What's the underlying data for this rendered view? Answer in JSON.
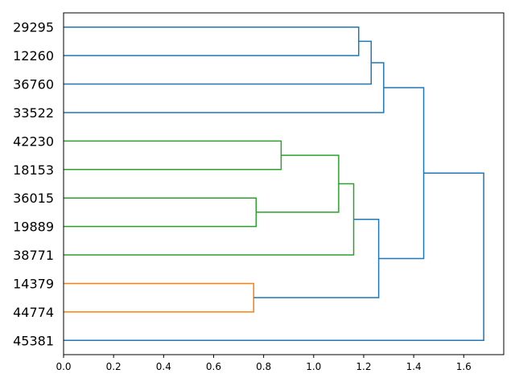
{
  "chart_data": {
    "type": "dendrogram",
    "orientation": "horizontal",
    "grid": false,
    "xlim": [
      0,
      1.76
    ],
    "x_ticks": [
      0.0,
      0.2,
      0.4,
      0.6,
      0.8,
      1.0,
      1.2,
      1.4,
      1.6
    ],
    "x_tick_labels": [
      "0.0",
      "0.2",
      "0.4",
      "0.6",
      "0.8",
      "1.0",
      "1.2",
      "1.4",
      "1.6"
    ],
    "leaves": [
      "29295",
      "12260",
      "36760",
      "33522",
      "42230",
      "18153",
      "36015",
      "19889",
      "38771",
      "14379",
      "44774",
      "45381"
    ],
    "colors": {
      "blue": "#1f77b4",
      "green": "#2ca02c",
      "orange": "#ff7f0e"
    },
    "merges": [
      {
        "left": "29295",
        "right": "12260",
        "height": 1.18,
        "color": "blue"
      },
      {
        "left": "c1",
        "right": "36760",
        "height": 1.23,
        "color": "blue"
      },
      {
        "left": "c2",
        "right": "33522",
        "height": 1.28,
        "color": "blue"
      },
      {
        "left": "42230",
        "right": "18153",
        "height": 0.87,
        "color": "green"
      },
      {
        "left": "36015",
        "right": "19889",
        "height": 0.77,
        "color": "green"
      },
      {
        "left": "c4",
        "right": "c5",
        "height": 1.1,
        "color": "green"
      },
      {
        "left": "c6",
        "right": "38771",
        "height": 1.16,
        "color": "green"
      },
      {
        "left": "14379",
        "right": "44774",
        "height": 0.76,
        "color": "orange"
      },
      {
        "left": "c7",
        "right": "c8",
        "height": 1.26,
        "color": "blue"
      },
      {
        "left": "c3",
        "right": "c9",
        "height": 1.44,
        "color": "blue"
      },
      {
        "left": "c10",
        "right": "45381",
        "height": 1.68,
        "color": "blue"
      }
    ]
  }
}
